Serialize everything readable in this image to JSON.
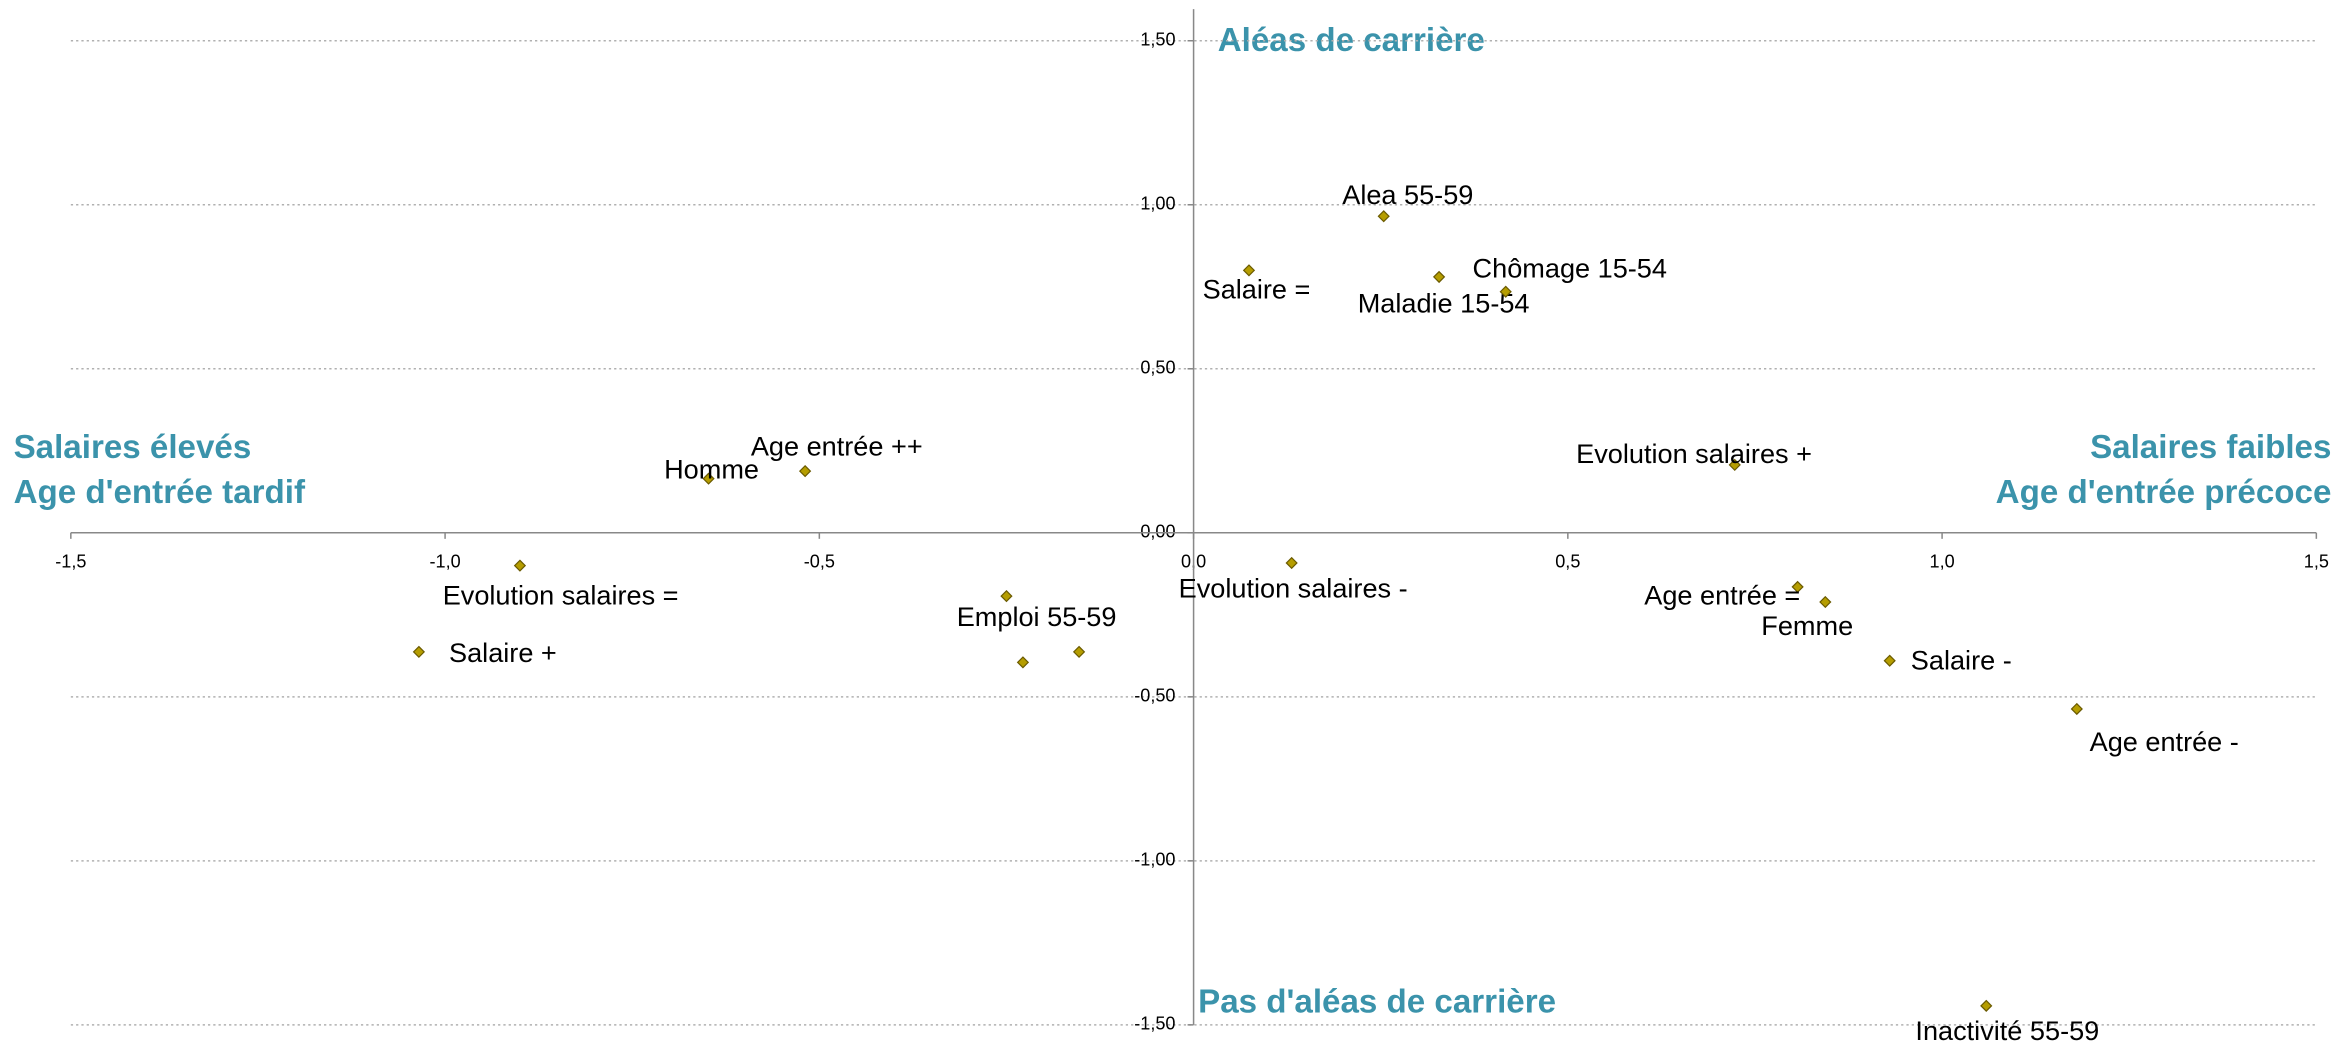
{
  "chart_data": {
    "type": "scatter",
    "color": "#b59d00",
    "xlim": [
      -1.5,
      1.5
    ],
    "ylim": [
      -1.5,
      1.5
    ],
    "xticks": [
      {
        "value": -1.5,
        "label": "-1,5"
      },
      {
        "value": -1.0,
        "label": "-1,0"
      },
      {
        "value": -0.5,
        "label": "-0,5"
      },
      {
        "value": 0,
        "label": "0,0"
      },
      {
        "value": 0.5,
        "label": "0,5"
      },
      {
        "value": 1.0,
        "label": "1,0"
      },
      {
        "value": 1.5,
        "label": "1,5"
      }
    ],
    "yticks": [
      {
        "value": -1.5,
        "label": "-1,50"
      },
      {
        "value": -1.0,
        "label": "-1,00"
      },
      {
        "value": -0.5,
        "label": "-0,50"
      },
      {
        "value": 0,
        "label": "0,00"
      },
      {
        "value": 0.5,
        "label": "0,50"
      },
      {
        "value": 1.0,
        "label": "1,00"
      },
      {
        "value": 1.5,
        "label": "1,50"
      }
    ],
    "grid": true,
    "x": [
      0.254,
      0.074,
      0.328,
      0.417,
      0.723,
      -0.519,
      -0.648,
      -0.9,
      0.131,
      0.807,
      0.844,
      -0.25,
      -0.228,
      -0.153,
      -1.035,
      0.93,
      1.18,
      1.059
    ],
    "y": [
      0.965,
      0.8,
      0.78,
      0.735,
      0.207,
      0.188,
      0.165,
      -0.1,
      -0.092,
      -0.165,
      -0.211,
      -0.193,
      -0.395,
      -0.363,
      -0.363,
      -0.39,
      -0.537,
      -1.442
    ],
    "labels": [
      "Alea 55-59",
      "Salaire =",
      "Maladie 15-54",
      "Chômage 15-54",
      "Evolution salaires +",
      "Age entrée ++",
      "Homme",
      "Evolution salaires =",
      "Evolution salaires -",
      "Age entrée =",
      "Femme",
      "Emploi 55-59",
      null,
      null,
      "Salaire +",
      "Salaire -",
      "Age entrée -",
      "Inactivité 55-59"
    ],
    "annotations": {
      "top": "Aléas de carrière",
      "bottom": "Pas d'aléas de carrière",
      "left": [
        "Salaires élevés",
        "Age d'entrée tardif"
      ],
      "right": [
        "Salaires faibles",
        "Age d'entrée précoce"
      ]
    }
  }
}
